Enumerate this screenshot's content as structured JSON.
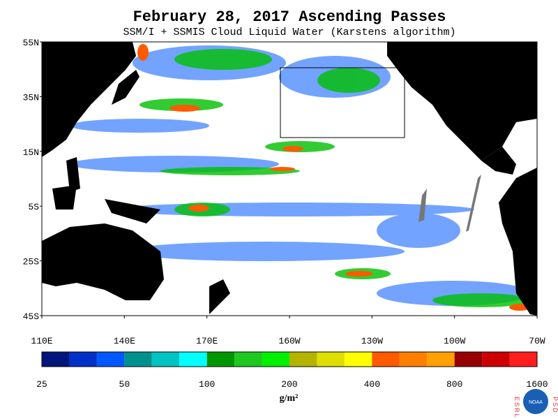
{
  "header": {
    "title": "February 28, 2017  Ascending Passes",
    "subtitle": "SSM/I + SSMIS Cloud Liquid Water (Karstens algorithm)"
  },
  "map": {
    "lat_labels": [
      "55N",
      "35N",
      "15N",
      "5S",
      "25S",
      "45S"
    ],
    "lon_labels": [
      "110E",
      "140E",
      "170E",
      "160W",
      "130W",
      "100W",
      "70W"
    ]
  },
  "colorbar": {
    "colors": [
      "#00167a",
      "#0030c8",
      "#0058ff",
      "#00918f",
      "#00c3c3",
      "#00ffff",
      "#009600",
      "#1ec81e",
      "#00f000",
      "#b4b400",
      "#dede00",
      "#ffff00",
      "#ff5a00",
      "#ff7f00",
      "#ffa000",
      "#960000",
      "#cc0000",
      "#ff1e1e"
    ],
    "ticks": [
      25,
      50,
      100,
      200,
      400,
      800,
      1600
    ],
    "unit": "g/m²"
  },
  "logo": {
    "left": "ESRL",
    "center": "NOAA",
    "right": "PSD"
  }
}
